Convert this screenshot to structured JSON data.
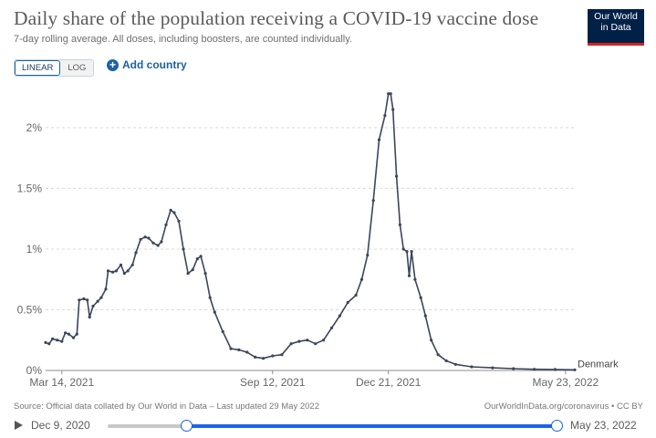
{
  "header": {
    "title": "Daily share of the population receiving a COVID-19 vaccine dose",
    "subtitle": "7-day rolling average. All doses, including boosters, are counted individually.",
    "logo_line1": "Our World",
    "logo_line2": "in Data"
  },
  "controls": {
    "linear_label": "LINEAR",
    "log_label": "LOG",
    "active_scale": "linear",
    "add_country_label": "Add country"
  },
  "footer": {
    "source": "Source: Official data collated by Our World in Data – Last updated 29 May 2022",
    "link": "OurWorldInData.org/coronavirus • CC BY"
  },
  "timeline": {
    "start_label": "Dec 9, 2020",
    "end_label": "May 23, 2022"
  },
  "colors": {
    "line": "#3b4659",
    "brand": "#002147",
    "accent": "#1d62e8",
    "grid": "#d9d9d9"
  },
  "chart_data": {
    "type": "line",
    "title": "Daily share of the population receiving a COVID-19 vaccine dose",
    "subtitle": "7-day rolling average. All doses, including boosters, are counted individually.",
    "x_axis": {
      "type": "date",
      "range": [
        "2021-02-28",
        "2022-05-31"
      ],
      "ticks": [
        "2021-03-14",
        "2021-09-12",
        "2021-12-21",
        "2022-05-23"
      ],
      "tick_labels": [
        "Mar 14, 2021",
        "Sep 12, 2021",
        "Dec 21, 2021",
        "May 23, 2022"
      ]
    },
    "y_axis": {
      "range": [
        0,
        2.3
      ],
      "ticks": [
        0,
        0.5,
        1,
        1.5,
        2
      ],
      "tick_labels": [
        "0%",
        "0.5%",
        "1%",
        "1.5%",
        "2%"
      ],
      "unit": "%",
      "scale": "linear"
    },
    "grid": "horizontal dashed",
    "series": [
      {
        "name": "Denmark",
        "points": [
          [
            "2021-02-28",
            0.23
          ],
          [
            "2021-03-03",
            0.22
          ],
          [
            "2021-03-06",
            0.26
          ],
          [
            "2021-03-10",
            0.25
          ],
          [
            "2021-03-14",
            0.24
          ],
          [
            "2021-03-17",
            0.31
          ],
          [
            "2021-03-20",
            0.3
          ],
          [
            "2021-03-24",
            0.27
          ],
          [
            "2021-03-27",
            0.3
          ],
          [
            "2021-03-29",
            0.58
          ],
          [
            "2021-04-02",
            0.59
          ],
          [
            "2021-04-05",
            0.58
          ],
          [
            "2021-04-07",
            0.44
          ],
          [
            "2021-04-10",
            0.53
          ],
          [
            "2021-04-14",
            0.57
          ],
          [
            "2021-04-17",
            0.6
          ],
          [
            "2021-04-21",
            0.67
          ],
          [
            "2021-04-23",
            0.82
          ],
          [
            "2021-04-27",
            0.81
          ],
          [
            "2021-04-30",
            0.82
          ],
          [
            "2021-05-04",
            0.87
          ],
          [
            "2021-05-07",
            0.8
          ],
          [
            "2021-05-10",
            0.82
          ],
          [
            "2021-05-14",
            0.87
          ],
          [
            "2021-05-17",
            0.97
          ],
          [
            "2021-05-21",
            1.08
          ],
          [
            "2021-05-25",
            1.1
          ],
          [
            "2021-05-28",
            1.09
          ],
          [
            "2021-06-01",
            1.05
          ],
          [
            "2021-06-05",
            1.03
          ],
          [
            "2021-06-08",
            1.06
          ],
          [
            "2021-06-12",
            1.2
          ],
          [
            "2021-06-16",
            1.32
          ],
          [
            "2021-06-19",
            1.3
          ],
          [
            "2021-06-23",
            1.23
          ],
          [
            "2021-06-27",
            1.0
          ],
          [
            "2021-07-01",
            0.8
          ],
          [
            "2021-07-05",
            0.83
          ],
          [
            "2021-07-09",
            0.92
          ],
          [
            "2021-07-12",
            0.94
          ],
          [
            "2021-07-16",
            0.8
          ],
          [
            "2021-07-20",
            0.6
          ],
          [
            "2021-07-24",
            0.48
          ],
          [
            "2021-07-31",
            0.32
          ],
          [
            "2021-08-07",
            0.18
          ],
          [
            "2021-08-14",
            0.17
          ],
          [
            "2021-08-21",
            0.15
          ],
          [
            "2021-08-28",
            0.11
          ],
          [
            "2021-09-04",
            0.1
          ],
          [
            "2021-09-12",
            0.12
          ],
          [
            "2021-09-20",
            0.13
          ],
          [
            "2021-09-28",
            0.22
          ],
          [
            "2021-10-05",
            0.24
          ],
          [
            "2021-10-12",
            0.25
          ],
          [
            "2021-10-19",
            0.22
          ],
          [
            "2021-10-26",
            0.25
          ],
          [
            "2021-11-02",
            0.35
          ],
          [
            "2021-11-09",
            0.45
          ],
          [
            "2021-11-16",
            0.56
          ],
          [
            "2021-11-23",
            0.62
          ],
          [
            "2021-11-28",
            0.75
          ],
          [
            "2021-12-03",
            0.95
          ],
          [
            "2021-12-08",
            1.4
          ],
          [
            "2021-12-13",
            1.9
          ],
          [
            "2021-12-18",
            2.1
          ],
          [
            "2021-12-21",
            2.28
          ],
          [
            "2021-12-23",
            2.28
          ],
          [
            "2021-12-25",
            2.15
          ],
          [
            "2021-12-28",
            1.6
          ],
          [
            "2021-12-31",
            1.2
          ],
          [
            "2022-01-03",
            1.0
          ],
          [
            "2022-01-06",
            0.98
          ],
          [
            "2022-01-08",
            0.78
          ],
          [
            "2022-01-10",
            0.98
          ],
          [
            "2022-01-13",
            0.75
          ],
          [
            "2022-01-18",
            0.6
          ],
          [
            "2022-01-22",
            0.45
          ],
          [
            "2022-01-27",
            0.25
          ],
          [
            "2022-02-02",
            0.13
          ],
          [
            "2022-02-09",
            0.08
          ],
          [
            "2022-02-17",
            0.05
          ],
          [
            "2022-03-03",
            0.03
          ],
          [
            "2022-03-21",
            0.022
          ],
          [
            "2022-04-08",
            0.015
          ],
          [
            "2022-04-26",
            0.01
          ],
          [
            "2022-05-14",
            0.008
          ],
          [
            "2022-05-31",
            0.005
          ]
        ]
      }
    ],
    "line_label": "Denmark"
  }
}
